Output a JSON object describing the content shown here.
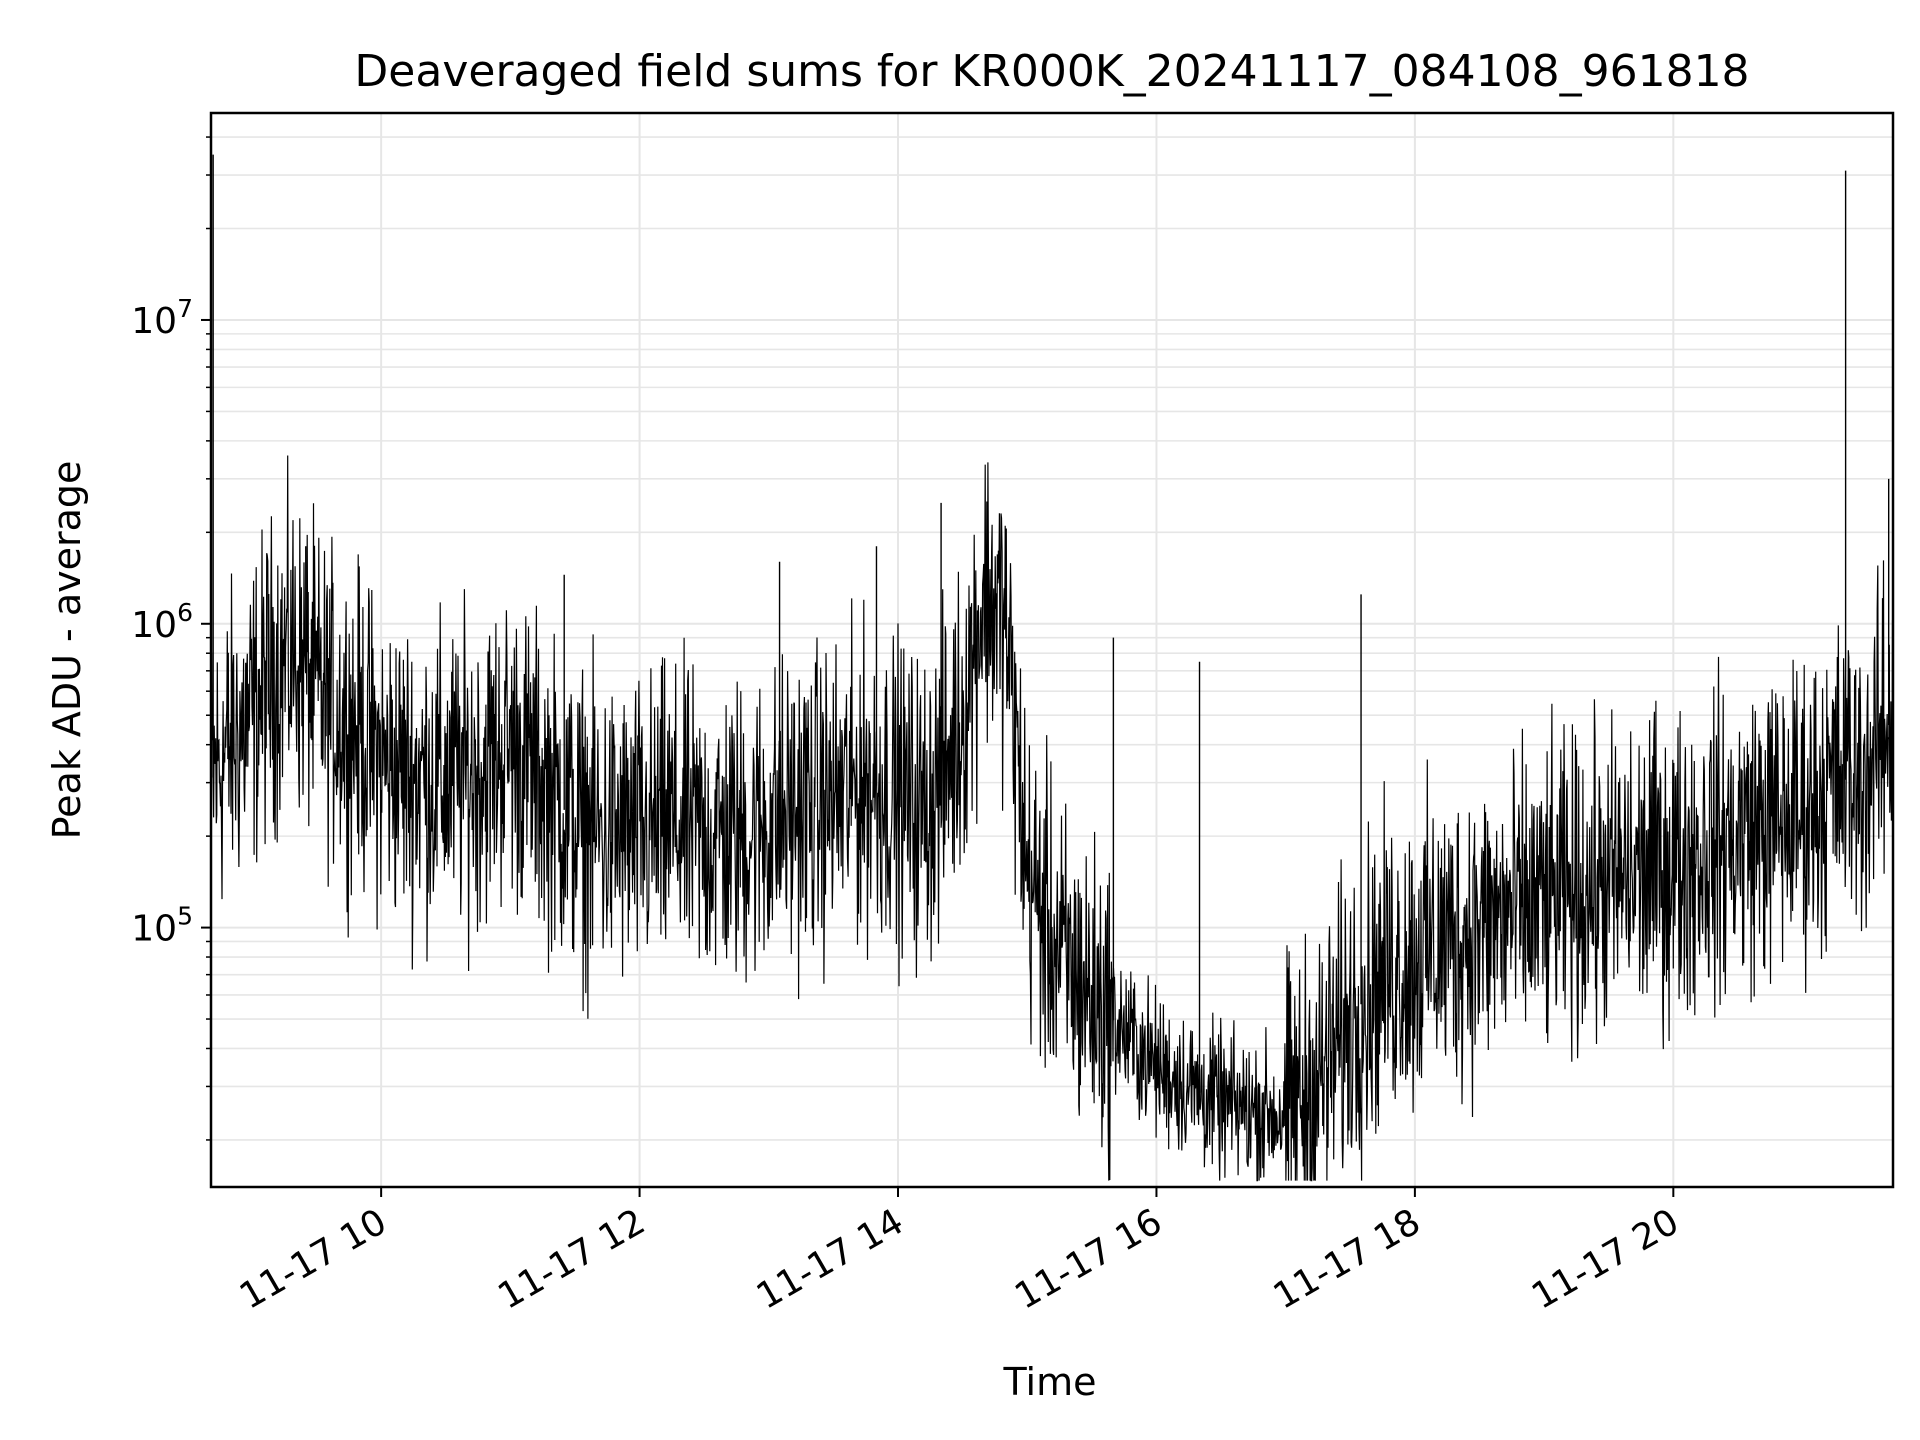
{
  "chart_data": {
    "type": "line",
    "title": "Deaveraged field sums for KR000K_20241117_084108_961818",
    "xlabel": "Time",
    "ylabel": "Peak ADU - average",
    "yscale": "log",
    "x_axis": "time",
    "xlim": [
      "2024-11-17 08:41",
      "2024-11-17 21:42"
    ],
    "ylim": [
      14000,
      48000000
    ],
    "grid": true,
    "line_color": "#000000",
    "grid_color": "#e6e6e6",
    "x_ticks": [
      {
        "t": "2024-11-17 10:00",
        "label": "11-17 10"
      },
      {
        "t": "2024-11-17 12:00",
        "label": "11-17 12"
      },
      {
        "t": "2024-11-17 14:00",
        "label": "11-17 14"
      },
      {
        "t": "2024-11-17 16:00",
        "label": "11-17 16"
      },
      {
        "t": "2024-11-17 18:00",
        "label": "11-17 18"
      },
      {
        "t": "2024-11-17 20:00",
        "label": "11-17 20"
      }
    ],
    "y_ticks": [
      {
        "value": 100000,
        "base": "10",
        "exp": "5"
      },
      {
        "value": 1000000,
        "base": "10",
        "exp": "6"
      },
      {
        "value": 10000000,
        "base": "10",
        "exp": "7"
      }
    ],
    "series": [
      {
        "x": [
          "2024-11-17 08:41",
          "2024-11-17 08:45",
          "2024-11-17 08:50",
          "2024-11-17 09:00",
          "2024-11-17 09:10",
          "2024-11-17 09:20",
          "2024-11-17 09:30",
          "2024-11-17 09:40",
          "2024-11-17 09:50",
          "2024-11-17 10:00",
          "2024-11-17 10:15",
          "2024-11-17 10:30",
          "2024-11-17 10:45",
          "2024-11-17 11:00",
          "2024-11-17 11:15",
          "2024-11-17 11:30",
          "2024-11-17 11:45",
          "2024-11-17 12:00",
          "2024-11-17 12:15",
          "2024-11-17 12:30",
          "2024-11-17 12:45",
          "2024-11-17 13:00",
          "2024-11-17 13:15",
          "2024-11-17 13:30",
          "2024-11-17 13:45",
          "2024-11-17 14:00",
          "2024-11-17 14:10",
          "2024-11-17 14:20",
          "2024-11-17 14:30",
          "2024-11-17 14:40",
          "2024-11-17 14:50",
          "2024-11-17 15:00",
          "2024-11-17 15:15",
          "2024-11-17 15:30",
          "2024-11-17 15:45",
          "2024-11-17 16:00",
          "2024-11-17 16:15",
          "2024-11-17 16:30",
          "2024-11-17 16:45",
          "2024-11-17 17:00",
          "2024-11-17 17:15",
          "2024-11-17 17:30",
          "2024-11-17 17:45",
          "2024-11-17 18:00",
          "2024-11-17 18:15",
          "2024-11-17 18:30",
          "2024-11-17 18:45",
          "2024-11-17 19:00",
          "2024-11-17 19:15",
          "2024-11-17 19:30",
          "2024-11-17 19:45",
          "2024-11-17 20:00",
          "2024-11-17 20:15",
          "2024-11-17 20:30",
          "2024-11-17 20:45",
          "2024-11-17 21:00",
          "2024-11-17 21:15",
          "2024-11-17 21:30",
          "2024-11-17 21:42"
        ],
        "y": [
          300000,
          350000,
          400000,
          500000,
          700000,
          800000,
          600000,
          500000,
          450000,
          350000,
          320000,
          300000,
          330000,
          400000,
          300000,
          220000,
          200000,
          200000,
          220000,
          200000,
          200000,
          220000,
          250000,
          260000,
          300000,
          280000,
          240000,
          300000,
          500000,
          1300000,
          1000000,
          150000,
          80000,
          60000,
          45000,
          35000,
          30000,
          26000,
          25000,
          24000,
          30000,
          50000,
          70000,
          80000,
          90000,
          100000,
          110000,
          120000,
          130000,
          140000,
          150000,
          160000,
          180000,
          200000,
          220000,
          240000,
          300000,
          320000,
          500000
        ]
      }
    ],
    "spikes": [
      {
        "x": "2024-11-17 08:42",
        "y": 35000000
      },
      {
        "x": "2024-11-17 09:25",
        "y": 1800000
      },
      {
        "x": "2024-11-17 11:25",
        "y": 1450000
      },
      {
        "x": "2024-11-17 13:05",
        "y": 1600000
      },
      {
        "x": "2024-11-17 13:50",
        "y": 1800000
      },
      {
        "x": "2024-11-17 14:20",
        "y": 2500000
      },
      {
        "x": "2024-11-17 15:40",
        "y": 900000
      },
      {
        "x": "2024-11-17 16:20",
        "y": 750000
      },
      {
        "x": "2024-11-17 17:35",
        "y": 1250000
      },
      {
        "x": "2024-11-17 21:20",
        "y": 31000000
      },
      {
        "x": "2024-11-17 21:40",
        "y": 3000000
      }
    ]
  }
}
